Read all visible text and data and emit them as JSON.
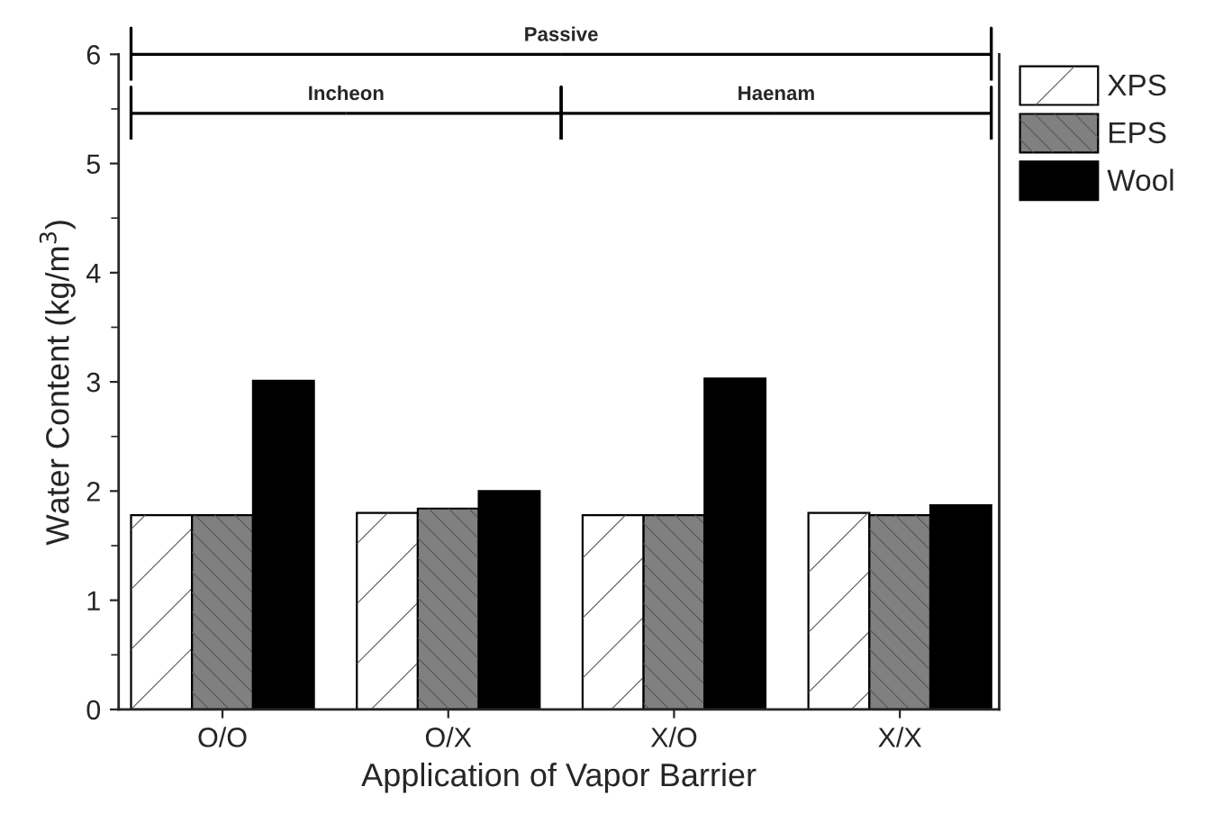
{
  "chart_data": {
    "type": "bar",
    "xlabel": "Application of Vapor Barrier",
    "ylabel": "Water Content (kg/m$^{3}$)",
    "categories": [
      "O/O",
      "O/X",
      "X/O",
      "X/X"
    ],
    "series": [
      {
        "name": "XPS",
        "color": "#ffffff",
        "values": [
          1.78,
          1.8,
          1.78,
          1.8
        ]
      },
      {
        "name": "EPS",
        "color": "#808080",
        "values": [
          1.78,
          1.84,
          1.78,
          1.78
        ]
      },
      {
        "name": "Wool",
        "color": "#000000",
        "values": [
          3.01,
          2.0,
          3.03,
          1.87
        ]
      }
    ],
    "ylim": [
      0,
      6
    ],
    "yticks": [
      0,
      1,
      2,
      3,
      4,
      5,
      6
    ],
    "grid": false,
    "legend": "top right",
    "annotations": [
      "Passive",
      "Incheon",
      "Haenam"
    ]
  }
}
